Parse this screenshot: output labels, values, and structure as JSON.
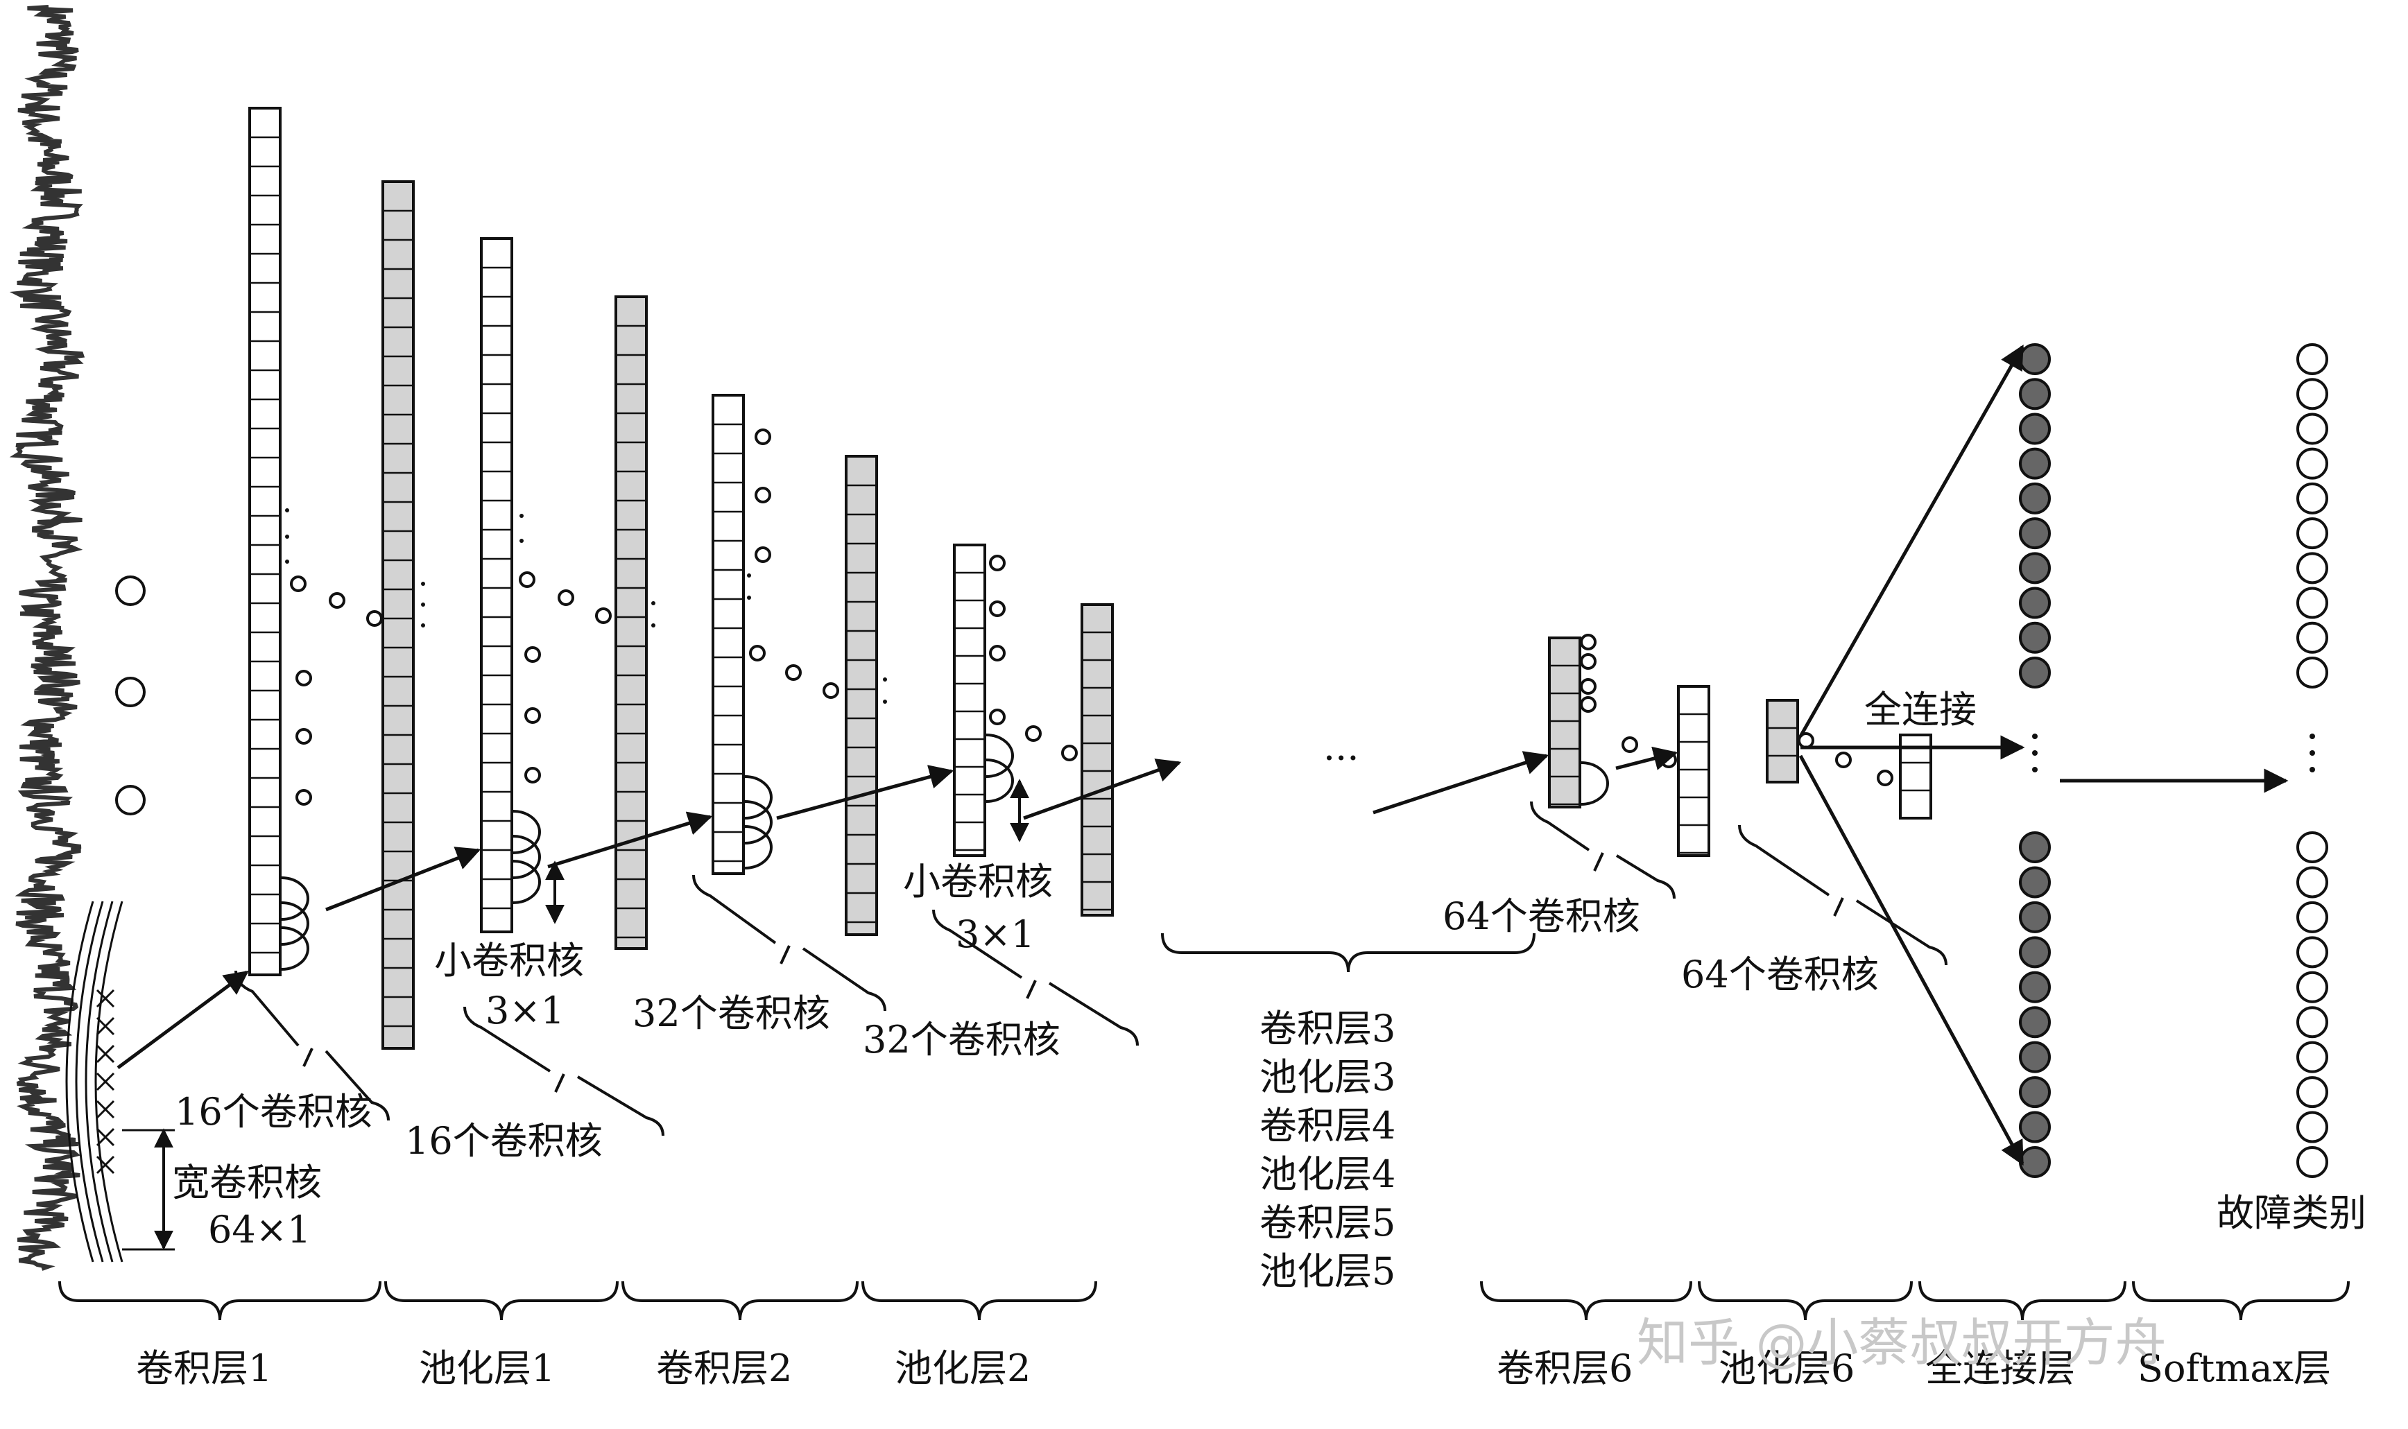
{
  "colors": {
    "ink": "#111111",
    "fill_gray": "#d3d3d3",
    "node_dark": "#666666",
    "watermark": "#c8c8c8"
  },
  "annotations": {
    "wide_kernel_name": "宽卷积核",
    "wide_kernel_size": "64×1",
    "k16_a": "16个卷积核",
    "k16_b": "16个卷积核",
    "small_kernel_a_name": "小卷积核",
    "small_kernel_a_size": "3×1",
    "k32_a": "32个卷积核",
    "k32_b": "32个卷积核",
    "small_kernel_b_name": "小卷积核",
    "small_kernel_b_size": "3×1",
    "k64_a": "64个卷积核",
    "k64_b": "64个卷积核",
    "fully_connected": "全连接",
    "ellipsis": "···",
    "fault_class": "故障类别"
  },
  "middle_layers": [
    "卷积层3",
    "池化层3",
    "卷积层4",
    "池化层4",
    "卷积层5",
    "池化层5"
  ],
  "bottom_labels": [
    "卷积层1",
    "池化层1",
    "卷积层2",
    "池化层2",
    "卷积层6",
    "池化层6",
    "全连接层",
    "Softmax层"
  ],
  "watermark": "知乎 @小蔡叔叔开方舟"
}
